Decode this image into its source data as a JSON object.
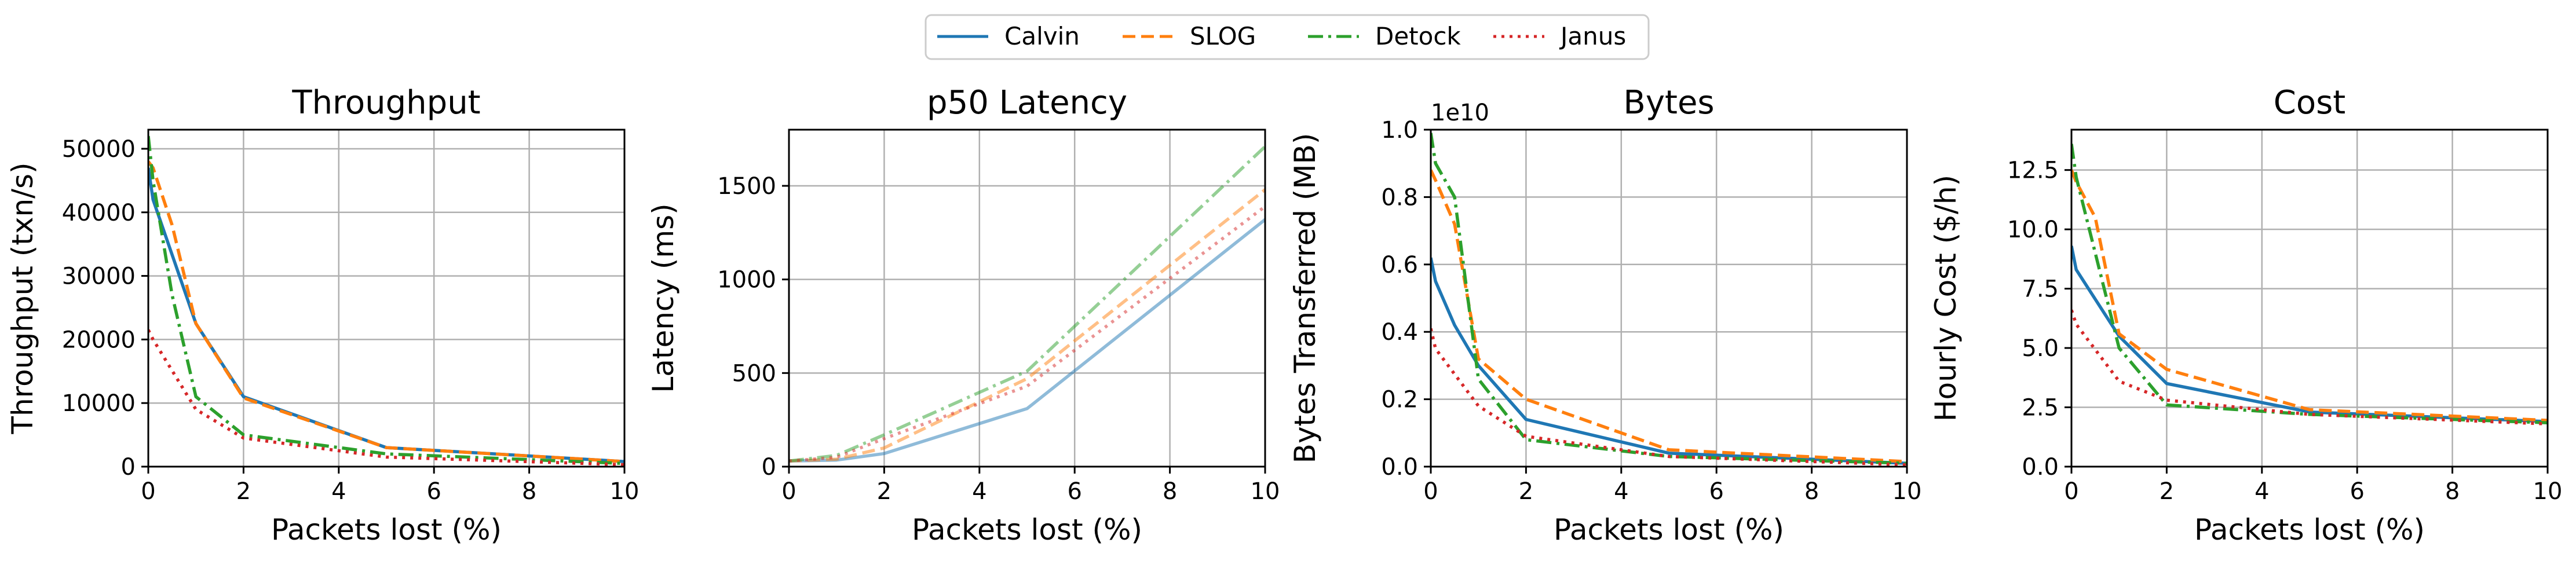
{
  "legend": {
    "entries": [
      {
        "name": "Calvin",
        "color": "#1f77b4",
        "dash": "solid"
      },
      {
        "name": "SLOG",
        "color": "#ff7f0e",
        "dash": "dashed"
      },
      {
        "name": "Detock",
        "color": "#2ca02c",
        "dash": "dashdot"
      },
      {
        "name": "Janus",
        "color": "#d62728",
        "dash": "dotted"
      }
    ]
  },
  "chart_data": [
    {
      "type": "line",
      "title": "Throughput",
      "xlabel": "Packets lost (%)",
      "ylabel": "Throughput (txn/s)",
      "xlim": [
        0,
        10
      ],
      "ylim": [
        0,
        53000
      ],
      "xticks": [
        0,
        2,
        4,
        6,
        8,
        10
      ],
      "yticks": [
        0,
        10000,
        20000,
        30000,
        40000,
        50000
      ],
      "ytick_labels": [
        "0",
        "10000",
        "20000",
        "30000",
        "40000",
        "50000"
      ],
      "grid": true,
      "series": [
        {
          "name": "Calvin",
          "x": [
            0,
            0.1,
            1,
            2,
            5,
            10
          ],
          "y": [
            47000,
            42000,
            22500,
            11000,
            3000,
            800
          ]
        },
        {
          "name": "SLOG",
          "x": [
            0,
            0.1,
            0.5,
            1,
            2,
            5,
            10
          ],
          "y": [
            48000,
            47000,
            38000,
            22500,
            10800,
            3000,
            800
          ]
        },
        {
          "name": "Detock",
          "x": [
            0,
            0.1,
            0.5,
            1,
            2,
            5,
            10
          ],
          "y": [
            52000,
            45000,
            27000,
            11000,
            5000,
            2000,
            500
          ]
        },
        {
          "name": "Janus",
          "x": [
            0,
            0.1,
            1,
            2,
            5,
            10
          ],
          "y": [
            21500,
            20000,
            9000,
            4500,
            1500,
            300
          ]
        }
      ]
    },
    {
      "type": "line",
      "title": "p50 Latency",
      "xlabel": "Packets lost (%)",
      "ylabel": "Latency (ms)",
      "xlim": [
        0,
        10
      ],
      "ylim": [
        0,
        1800
      ],
      "xticks": [
        0,
        2,
        4,
        6,
        8,
        10
      ],
      "yticks": [
        0,
        500,
        1000,
        1500
      ],
      "ytick_labels": [
        "0",
        "500",
        "1000",
        "1500"
      ],
      "grid": true,
      "faded": true,
      "series": [
        {
          "name": "Calvin",
          "x": [
            0,
            1,
            2,
            5,
            10
          ],
          "y": [
            30,
            35,
            70,
            310,
            1320
          ]
        },
        {
          "name": "SLOG",
          "x": [
            0,
            1,
            2,
            5,
            10
          ],
          "y": [
            30,
            40,
            100,
            470,
            1480
          ]
        },
        {
          "name": "Detock",
          "x": [
            0,
            1,
            2,
            5,
            10
          ],
          "y": [
            30,
            60,
            170,
            510,
            1710
          ]
        },
        {
          "name": "Janus",
          "x": [
            0,
            1,
            2,
            5,
            10
          ],
          "y": [
            30,
            50,
            150,
            430,
            1390
          ]
        }
      ]
    },
    {
      "type": "line",
      "title": "Bytes",
      "xlabel": "Packets lost (%)",
      "ylabel": "Bytes Transferred (MB)",
      "offset_text": "1e10",
      "xlim": [
        0,
        10
      ],
      "ylim": [
        0,
        1.0
      ],
      "xticks": [
        0,
        2,
        4,
        6,
        8,
        10
      ],
      "yticks": [
        0,
        0.2,
        0.4,
        0.6,
        0.8,
        1.0
      ],
      "ytick_labels": [
        "0.0",
        "0.2",
        "0.4",
        "0.6",
        "0.8",
        "1.0"
      ],
      "grid": true,
      "series": [
        {
          "name": "Calvin",
          "x": [
            0,
            0.1,
            0.5,
            1,
            2,
            5,
            10
          ],
          "y": [
            0.62,
            0.55,
            0.42,
            0.3,
            0.14,
            0.04,
            0.01
          ]
        },
        {
          "name": "SLOG",
          "x": [
            0,
            0.1,
            0.5,
            1,
            2,
            5,
            10
          ],
          "y": [
            0.88,
            0.85,
            0.72,
            0.32,
            0.2,
            0.05,
            0.015
          ]
        },
        {
          "name": "Detock",
          "x": [
            0,
            0.1,
            0.5,
            1,
            2,
            5,
            10
          ],
          "y": [
            0.99,
            0.9,
            0.8,
            0.26,
            0.08,
            0.03,
            0.01
          ]
        },
        {
          "name": "Janus",
          "x": [
            0,
            0.1,
            1,
            2,
            5,
            10
          ],
          "y": [
            0.41,
            0.35,
            0.18,
            0.09,
            0.03,
            0.005
          ]
        }
      ]
    },
    {
      "type": "line",
      "title": "Cost",
      "xlabel": "Packets lost (%)",
      "ylabel": "Hourly Cost ($/h)",
      "xlim": [
        0,
        10
      ],
      "ylim": [
        0,
        14.2
      ],
      "xticks": [
        0,
        2,
        4,
        6,
        8,
        10
      ],
      "yticks": [
        0,
        2.5,
        5,
        7.5,
        10,
        12.5
      ],
      "ytick_labels": [
        "0.0",
        "2.5",
        "5.0",
        "7.5",
        "10.0",
        "12.5"
      ],
      "grid": true,
      "series": [
        {
          "name": "Calvin",
          "x": [
            0,
            0.1,
            1,
            2,
            5,
            10
          ],
          "y": [
            9.3,
            8.3,
            5.5,
            3.5,
            2.3,
            1.9
          ]
        },
        {
          "name": "SLOG",
          "x": [
            0,
            0.1,
            0.5,
            1,
            2,
            5,
            10
          ],
          "y": [
            12.5,
            12.0,
            10.5,
            5.6,
            4.1,
            2.4,
            1.95
          ]
        },
        {
          "name": "Detock",
          "x": [
            0,
            0.1,
            0.5,
            1,
            2,
            5,
            10
          ],
          "y": [
            13.6,
            12.2,
            9.0,
            5.0,
            2.6,
            2.2,
            1.85
          ]
        },
        {
          "name": "Janus",
          "x": [
            0,
            0.1,
            1,
            2,
            5,
            10
          ],
          "y": [
            6.6,
            6.0,
            3.6,
            2.8,
            2.2,
            1.8
          ]
        }
      ]
    }
  ]
}
